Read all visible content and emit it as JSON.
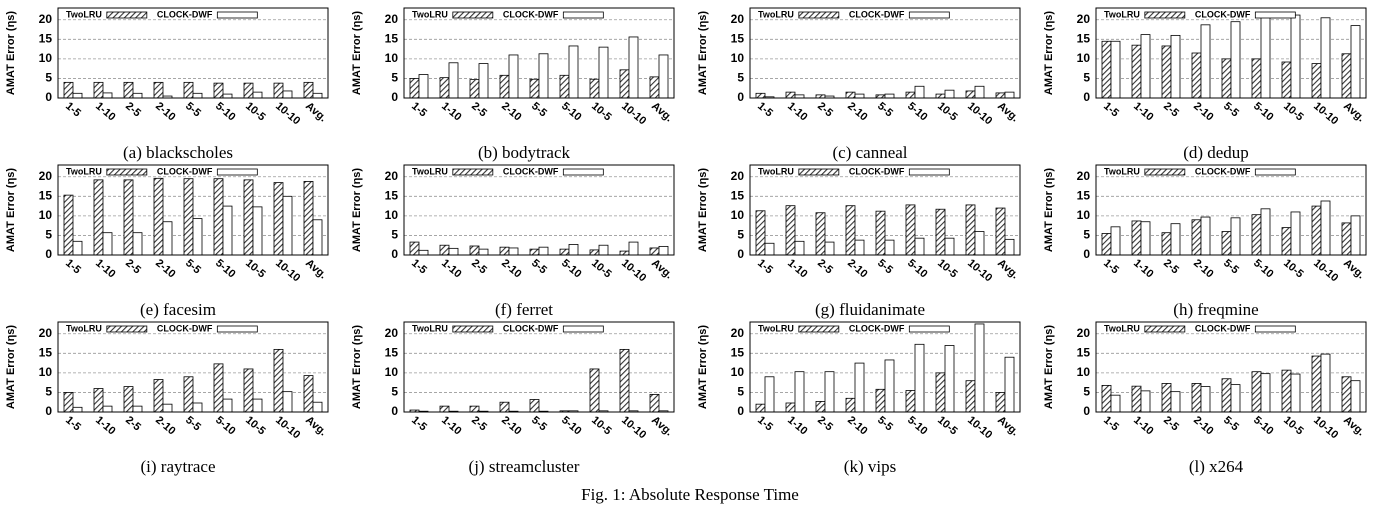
{
  "caption": "Fig. 1: Absolute Response Time",
  "chart_data": [
    {
      "type": "bar",
      "caption": "(a) blackscholes",
      "y_label": "AMAT Error (ηs)",
      "categories": [
        "1-5",
        "1-10",
        "2-5",
        "2-10",
        "5-5",
        "5-10",
        "10-5",
        "10-10",
        "Avg."
      ],
      "ylim": [
        0,
        23
      ],
      "yticks": [
        0,
        5,
        10,
        15,
        20
      ],
      "grid": true,
      "series": [
        {
          "name": "TwoLRU",
          "color": "#333333",
          "pattern": "hatched",
          "values": [
            4,
            4,
            4,
            4,
            4,
            3.8,
            3.8,
            3.8,
            4
          ]
        },
        {
          "name": "CLOCK-DWF",
          "color": "#ffffff",
          "values": [
            1.2,
            1.3,
            1.2,
            0.5,
            1.2,
            1,
            1.5,
            1.8,
            1.2
          ]
        }
      ]
    },
    {
      "type": "bar",
      "caption": "(b) bodytrack",
      "y_label": "AMAT Error (ηs)",
      "categories": [
        "1-5",
        "1-10",
        "2-5",
        "2-10",
        "5-5",
        "5-10",
        "10-5",
        "10-10",
        "Avg."
      ],
      "ylim": [
        0,
        23
      ],
      "yticks": [
        0,
        5,
        10,
        15,
        20
      ],
      "grid": true,
      "series": [
        {
          "name": "TwoLRU",
          "color": "#333333",
          "pattern": "hatched",
          "values": [
            5,
            5.2,
            4.7,
            5.8,
            4.8,
            5.8,
            4.8,
            7.2,
            5.4
          ]
        },
        {
          "name": "CLOCK-DWF",
          "color": "#ffffff",
          "values": [
            6,
            9,
            8.8,
            11,
            11.3,
            13.3,
            13,
            15.6,
            11
          ]
        }
      ]
    },
    {
      "type": "bar",
      "caption": "(c) canneal",
      "y_label": "AMAT Error (ηs)",
      "categories": [
        "1-5",
        "1-10",
        "2-5",
        "2-10",
        "5-5",
        "5-10",
        "10-5",
        "10-10",
        "Avg."
      ],
      "ylim": [
        0,
        23
      ],
      "yticks": [
        0,
        5,
        10,
        15,
        20
      ],
      "grid": true,
      "series": [
        {
          "name": "TwoLRU",
          "color": "#333333",
          "pattern": "hatched",
          "values": [
            1.2,
            1.5,
            0.8,
            1.5,
            0.8,
            1.5,
            1,
            1.8,
            1.3
          ]
        },
        {
          "name": "CLOCK-DWF",
          "color": "#ffffff",
          "values": [
            0.3,
            0.8,
            0.5,
            1,
            1,
            3,
            2,
            3,
            1.5
          ]
        }
      ]
    },
    {
      "type": "bar",
      "caption": "(d) dedup",
      "y_label": "AMAT Error (ηs)",
      "categories": [
        "1-5",
        "1-10",
        "2-5",
        "2-10",
        "5-5",
        "5-10",
        "10-5",
        "10-10",
        "Avg."
      ],
      "ylim": [
        0,
        23
      ],
      "yticks": [
        0,
        5,
        10,
        15,
        20
      ],
      "grid": true,
      "series": [
        {
          "name": "TwoLRU",
          "color": "#333333",
          "pattern": "hatched",
          "values": [
            14.5,
            13.5,
            13.3,
            11.5,
            10,
            10,
            9.2,
            8.8,
            11.3
          ]
        },
        {
          "name": "CLOCK-DWF",
          "color": "#ffffff",
          "values": [
            14.5,
            16.2,
            16,
            18.7,
            19.5,
            21.3,
            21.2,
            20.5,
            18.5
          ]
        }
      ]
    },
    {
      "type": "bar",
      "caption": "(e) facesim",
      "y_label": "AMAT Error (ηs)",
      "categories": [
        "1-5",
        "1-10",
        "2-5",
        "2-10",
        "5-5",
        "5-10",
        "10-5",
        "10-10",
        "Avg."
      ],
      "ylim": [
        0,
        23
      ],
      "yticks": [
        0,
        5,
        10,
        15,
        20
      ],
      "grid": true,
      "series": [
        {
          "name": "TwoLRU",
          "color": "#333333",
          "pattern": "hatched",
          "values": [
            15.3,
            19.2,
            19.2,
            19.6,
            19.5,
            19.5,
            19.2,
            18.5,
            18.8
          ]
        },
        {
          "name": "CLOCK-DWF",
          "color": "#ffffff",
          "values": [
            3.5,
            5.7,
            5.7,
            8.5,
            9.3,
            12.5,
            12.3,
            15,
            9
          ]
        }
      ]
    },
    {
      "type": "bar",
      "caption": "(f) ferret",
      "y_label": "AMAT Error (ηs)",
      "categories": [
        "1-5",
        "1-10",
        "2-5",
        "2-10",
        "5-5",
        "5-10",
        "10-5",
        "10-10",
        "Avg."
      ],
      "ylim": [
        0,
        23
      ],
      "yticks": [
        0,
        5,
        10,
        15,
        20
      ],
      "grid": true,
      "series": [
        {
          "name": "TwoLRU",
          "color": "#333333",
          "pattern": "hatched",
          "values": [
            3.3,
            2.5,
            2.3,
            2,
            1.5,
            1.5,
            1.3,
            1,
            1.8
          ]
        },
        {
          "name": "CLOCK-DWF",
          "color": "#ffffff",
          "values": [
            1.2,
            1.7,
            1.5,
            1.8,
            2,
            2.7,
            2.5,
            3.3,
            2.2
          ]
        }
      ]
    },
    {
      "type": "bar",
      "caption": "(g) fluidanimate",
      "y_label": "AMAT Error (ηs)",
      "categories": [
        "1-5",
        "1-10",
        "2-5",
        "2-10",
        "5-5",
        "5-10",
        "10-5",
        "10-10",
        "Avg."
      ],
      "ylim": [
        0,
        23
      ],
      "yticks": [
        0,
        5,
        10,
        15,
        20
      ],
      "grid": true,
      "series": [
        {
          "name": "TwoLRU",
          "color": "#333333",
          "pattern": "hatched",
          "values": [
            11.3,
            12.6,
            10.8,
            12.6,
            11.2,
            12.8,
            11.7,
            12.8,
            12
          ]
        },
        {
          "name": "CLOCK-DWF",
          "color": "#ffffff",
          "values": [
            3,
            3.5,
            3.3,
            3.8,
            3.8,
            4.3,
            4.3,
            6,
            4
          ]
        }
      ]
    },
    {
      "type": "bar",
      "caption": "(h) freqmine",
      "y_label": "AMAT Error (ηs)",
      "categories": [
        "1-5",
        "1-10",
        "2-5",
        "2-10",
        "5-5",
        "5-10",
        "10-5",
        "10-10",
        "Avg."
      ],
      "ylim": [
        0,
        23
      ],
      "yticks": [
        0,
        5,
        10,
        15,
        20
      ],
      "grid": true,
      "series": [
        {
          "name": "TwoLRU",
          "color": "#333333",
          "pattern": "hatched",
          "values": [
            5.5,
            8.7,
            5.7,
            9,
            6,
            10.3,
            7,
            12.5,
            8.2
          ]
        },
        {
          "name": "CLOCK-DWF",
          "color": "#ffffff",
          "values": [
            7.2,
            8.5,
            8,
            9.7,
            9.5,
            11.8,
            11,
            13.8,
            10
          ]
        }
      ]
    },
    {
      "type": "bar",
      "caption": "(i) raytrace",
      "y_label": "AMAT Error (ηs)",
      "categories": [
        "1-5",
        "1-10",
        "2-5",
        "2-10",
        "5-5",
        "5-10",
        "10-5",
        "10-10",
        "Avg."
      ],
      "ylim": [
        0,
        23
      ],
      "yticks": [
        0,
        5,
        10,
        15,
        20
      ],
      "grid": true,
      "series": [
        {
          "name": "TwoLRU",
          "color": "#333333",
          "pattern": "hatched",
          "values": [
            5,
            6,
            6.5,
            8.3,
            9,
            12.3,
            11,
            16,
            9.3
          ]
        },
        {
          "name": "CLOCK-DWF",
          "color": "#ffffff",
          "values": [
            1.2,
            1.5,
            1.5,
            2,
            2.3,
            3.3,
            3.3,
            5.2,
            2.5
          ]
        }
      ]
    },
    {
      "type": "bar",
      "caption": "(j) streamcluster",
      "y_label": "AMAT Error (ηs)",
      "categories": [
        "1-5",
        "1-10",
        "2-5",
        "2-10",
        "5-5",
        "5-10",
        "10-5",
        "10-10",
        "Avg."
      ],
      "ylim": [
        0,
        23
      ],
      "yticks": [
        0,
        5,
        10,
        15,
        20
      ],
      "grid": true,
      "series": [
        {
          "name": "TwoLRU",
          "color": "#333333",
          "pattern": "hatched",
          "values": [
            0.5,
            1.5,
            1.5,
            2.5,
            3.2,
            0.3,
            11,
            16,
            4.5
          ]
        },
        {
          "name": "CLOCK-DWF",
          "color": "#ffffff",
          "values": [
            0.2,
            0.2,
            0.2,
            0.2,
            0.2,
            0.3,
            0.3,
            0.3,
            0.3
          ]
        }
      ]
    },
    {
      "type": "bar",
      "caption": "(k) vips",
      "y_label": "AMAT Error (ηs)",
      "categories": [
        "1-5",
        "1-10",
        "2-5",
        "2-10",
        "5-5",
        "5-10",
        "10-5",
        "10-10",
        "Avg."
      ],
      "ylim": [
        0,
        23
      ],
      "yticks": [
        0,
        5,
        10,
        15,
        20
      ],
      "grid": true,
      "series": [
        {
          "name": "TwoLRU",
          "color": "#333333",
          "pattern": "hatched",
          "values": [
            2,
            2.3,
            2.7,
            3.5,
            5.8,
            5.5,
            10,
            8,
            5
          ]
        },
        {
          "name": "CLOCK-DWF",
          "color": "#ffffff",
          "values": [
            9,
            10.3,
            10.3,
            12.5,
            13.3,
            17.3,
            17,
            22.5,
            14
          ]
        }
      ]
    },
    {
      "type": "bar",
      "caption": "(l) x264",
      "y_label": "AMAT Error (ηs)",
      "categories": [
        "1-5",
        "1-10",
        "2-5",
        "2-10",
        "5-5",
        "5-10",
        "10-5",
        "10-10",
        "Avg."
      ],
      "ylim": [
        0,
        23
      ],
      "yticks": [
        0,
        5,
        10,
        15,
        20
      ],
      "grid": true,
      "series": [
        {
          "name": "TwoLRU",
          "color": "#333333",
          "pattern": "hatched",
          "values": [
            6.8,
            6.6,
            7.3,
            7.3,
            8.5,
            10.3,
            10.7,
            14.3,
            9
          ]
        },
        {
          "name": "CLOCK-DWF",
          "color": "#ffffff",
          "values": [
            4.3,
            5.4,
            5.2,
            6.5,
            7,
            9.8,
            9.7,
            14.8,
            8
          ]
        }
      ]
    }
  ]
}
